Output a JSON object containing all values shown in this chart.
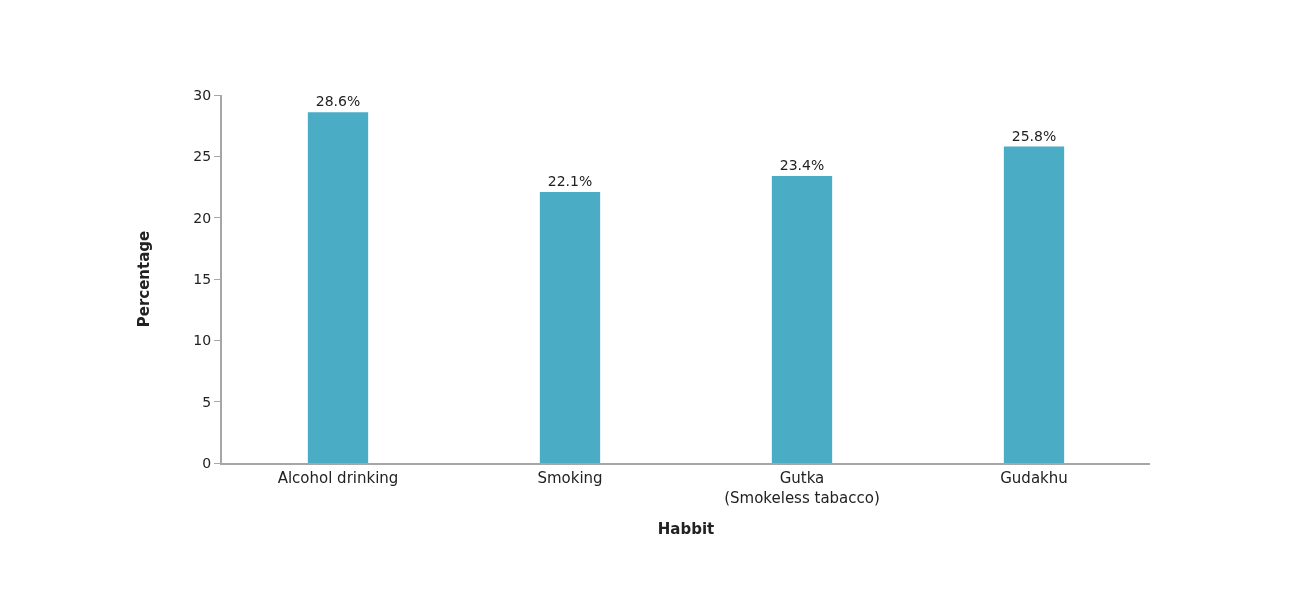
{
  "chart_data": {
    "type": "bar",
    "xlabel": "Habbit",
    "ylabel": "Percentage",
    "categories": [
      "Alcohol drinking",
      "Smoking",
      "Gutka\n(Smokeless tabacco)",
      "Gudakhu"
    ],
    "values": [
      28.6,
      22.1,
      23.4,
      25.8
    ],
    "color": "#4bacc6",
    "value_labels": [
      "28.6%",
      "22.1%",
      "23.4%",
      "25.8%"
    ],
    "ylim": [
      0,
      30
    ],
    "yticks": [
      0,
      5,
      10,
      15,
      20,
      25,
      30
    ],
    "grid": false
  }
}
